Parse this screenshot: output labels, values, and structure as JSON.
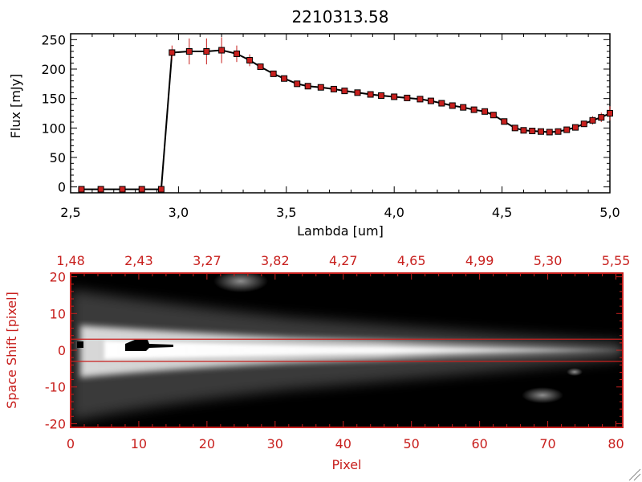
{
  "colors": {
    "text": "#000000",
    "accent": "#c8201e",
    "background": "#ffffff",
    "image_bg": "#000000"
  },
  "chart_data": [
    {
      "type": "line",
      "title": "2210313.58",
      "xlabel": "Lambda [um]",
      "ylabel": "Flux [mJy]",
      "xlim": [
        2.5,
        5.0
      ],
      "ylim": [
        -10,
        260
      ],
      "x_ticks": [
        "2,5",
        "3,0",
        "3,5",
        "4,0",
        "4,5",
        "5,0"
      ],
      "y_ticks": [
        "0",
        "50",
        "100",
        "150",
        "200",
        "250"
      ],
      "grid": false,
      "marker": "square",
      "line_color": "#000000",
      "marker_color": "#c8201e",
      "errorbar_color": "#c8201e",
      "x": [
        2.55,
        2.64,
        2.74,
        2.83,
        2.92,
        2.97,
        3.05,
        3.13,
        3.2,
        3.27,
        3.33,
        3.38,
        3.44,
        3.49,
        3.55,
        3.6,
        3.66,
        3.72,
        3.77,
        3.83,
        3.89,
        3.94,
        4.0,
        4.06,
        4.12,
        4.17,
        4.22,
        4.27,
        4.32,
        4.37,
        4.42,
        4.46,
        4.51,
        4.56,
        4.6,
        4.64,
        4.68,
        4.72,
        4.76,
        4.8,
        4.84,
        4.88,
        4.92,
        4.96,
        5.0
      ],
      "y": [
        -4,
        -4,
        -4,
        -4,
        -4,
        228,
        230,
        230,
        232,
        226,
        215,
        204,
        192,
        184,
        175,
        171,
        169,
        166,
        163,
        160,
        157,
        155,
        153,
        151,
        149,
        146,
        142,
        138,
        135,
        131,
        128,
        122,
        111,
        100,
        96,
        95,
        94,
        93,
        94,
        97,
        101,
        107,
        113,
        118,
        125
      ],
      "yerr": [
        0,
        0,
        0,
        0,
        0,
        12,
        22,
        22,
        22,
        14,
        10,
        5,
        3,
        2,
        2,
        2,
        2,
        2,
        2,
        2,
        2,
        2,
        2,
        2,
        2,
        2,
        2,
        2,
        2,
        2,
        2,
        2,
        2,
        3,
        3,
        3,
        3,
        3,
        3,
        3,
        4,
        5,
        7,
        8,
        12
      ]
    },
    {
      "type": "heatmap",
      "xlabel": "Pixel",
      "ylabel": "Space Shift [pixel]",
      "xlim": [
        0,
        81
      ],
      "ylim": [
        -21,
        21
      ],
      "x_ticks": [
        "0",
        "10",
        "20",
        "30",
        "40",
        "50",
        "60",
        "70",
        "80"
      ],
      "y_ticks": [
        "-20",
        "-10",
        "0",
        "10",
        "20"
      ],
      "top_ticks": [
        "1,48",
        "2,43",
        "3,27",
        "3,82",
        "4,27",
        "4,65",
        "4,99",
        "5,30",
        "5,55"
      ],
      "aperture_lines_y": [
        3,
        -3
      ],
      "colormap": "grayscale",
      "features": [
        {
          "x": 25,
          "y": 18,
          "description": "faint blob"
        },
        {
          "x": 69,
          "y": -11,
          "description": "faint blob"
        },
        {
          "x": 74,
          "y": -5,
          "description": "faint spot"
        }
      ]
    }
  ]
}
